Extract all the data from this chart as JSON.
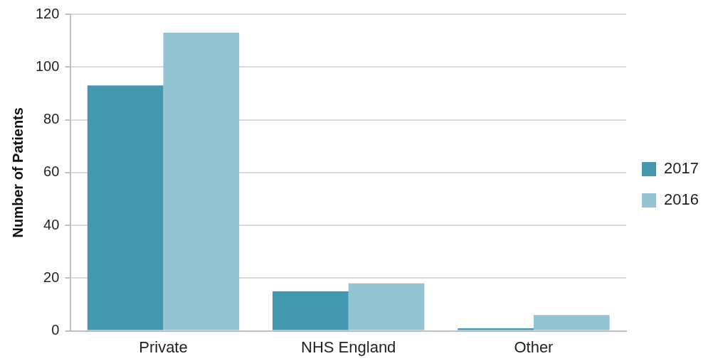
{
  "chart_data": {
    "type": "bar",
    "ylabel": "Number of Patients",
    "categories": [
      "Private",
      "NHS England",
      "Other"
    ],
    "series": [
      {
        "name": "2017",
        "color": "#4397ae",
        "values": [
          93,
          15,
          1
        ]
      },
      {
        "name": "2016",
        "color": "#93c4d4",
        "values": [
          113,
          18,
          6
        ]
      }
    ],
    "ylim": [
      0,
      120
    ],
    "yticks": [
      0,
      20,
      40,
      60,
      80,
      100,
      120
    ],
    "grid": "y",
    "legend": "right"
  }
}
